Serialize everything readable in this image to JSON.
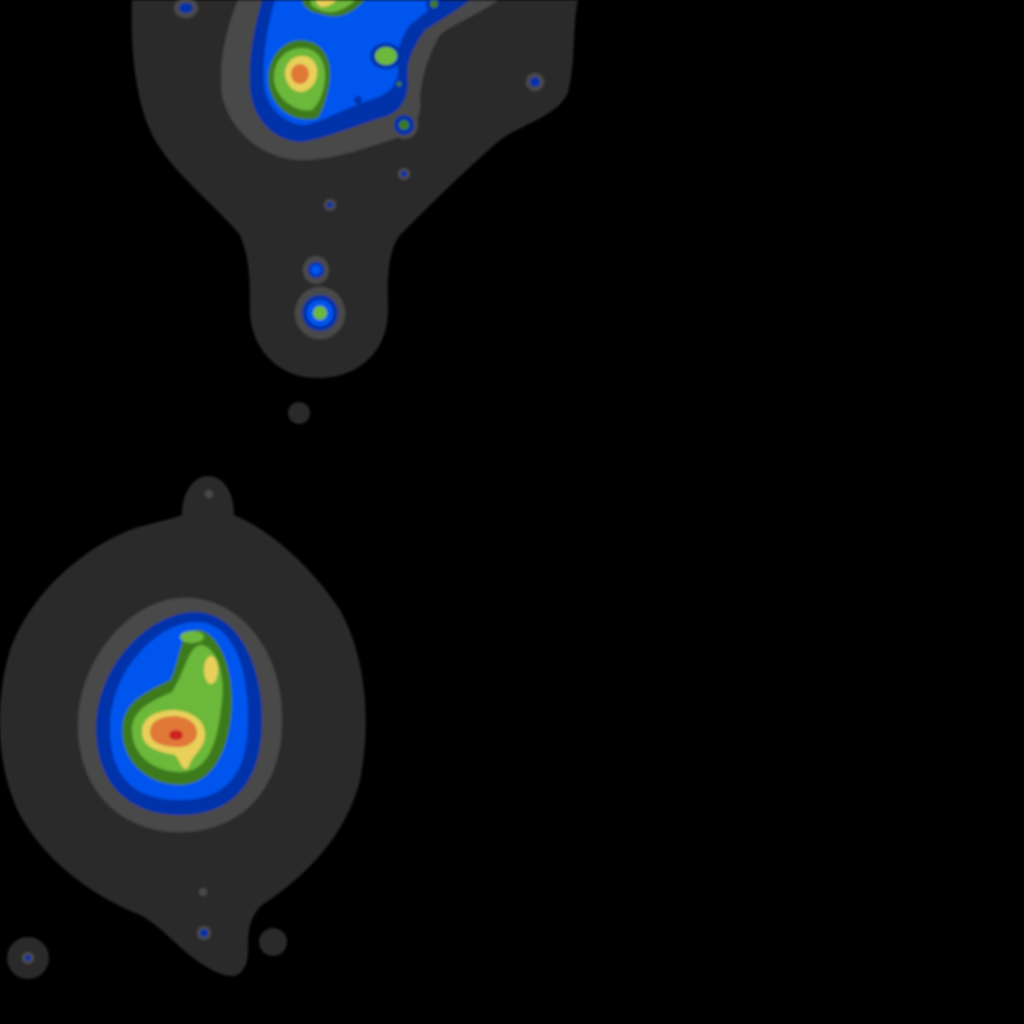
{
  "map": {
    "type": "density-heatmap",
    "background_color": "#000000",
    "palette": {
      "level_1": "#2a2a2a",
      "level_2": "#4a4a4a",
      "level_3": "#0033aa",
      "level_4": "#0055ee",
      "level_5": "#3d7a1e",
      "level_6": "#6cb83a",
      "level_7": "#e8d05a",
      "level_8": "#e07838",
      "level_9": "#cc2020"
    }
  }
}
